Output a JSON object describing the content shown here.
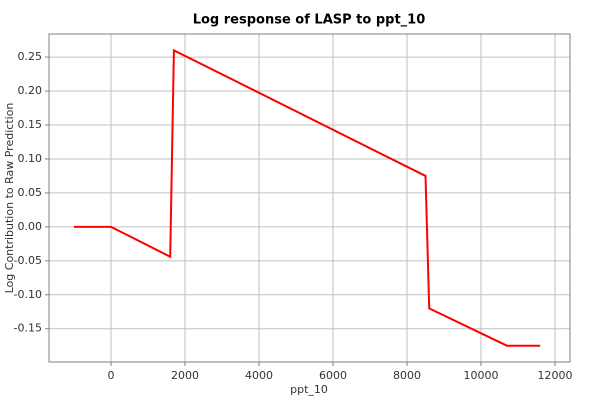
{
  "chart_data": {
    "type": "line",
    "title": "Log response of LASP to ppt_10",
    "x_label": "ppt_10",
    "y_label": "Log Contribution to Raw Prediction",
    "x": [
      -1000,
      0,
      1600,
      1700,
      8500,
      8600,
      10700,
      11600
    ],
    "series": [
      {
        "color": "#ff0000",
        "values": [
          0,
          0,
          -0.044,
          0.26,
          0.075,
          -0.12,
          -0.175,
          -0.175
        ]
      }
    ],
    "xlim": [
      -1676,
      12405
    ],
    "ylim": [
      -0.199,
      0.284
    ],
    "xticks": [
      0,
      2000,
      4000,
      6000,
      8000,
      10000,
      12000
    ],
    "yticks": [
      -0.15,
      {
        "value": -0.1,
        "label": "-0.10"
      },
      -0.05,
      {
        "value": 0,
        "label": "0.00"
      },
      0.05,
      {
        "value": 0.1,
        "label": "0.10"
      },
      0.15,
      {
        "value": 0.2,
        "label": "0.20"
      },
      0.25
    ],
    "grid": true
  }
}
